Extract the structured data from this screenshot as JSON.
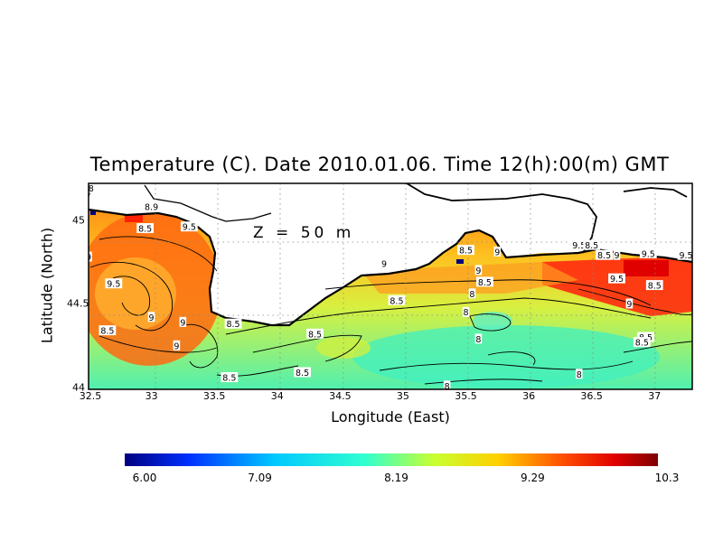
{
  "title": "Temperature (C). Date 2010.01.06. Time 12(h):00(m) GMT",
  "depth_label": "Z = 50 m",
  "x_axis": {
    "label": "Longitude (East)",
    "ticks": [
      "32.5",
      "33",
      "33.5",
      "34",
      "34.5",
      "35",
      "35.5",
      "36",
      "36.5",
      "37"
    ],
    "range": [
      32.5,
      37.3
    ]
  },
  "y_axis": {
    "label": "Latitude (North)",
    "ticks": [
      "44",
      "44.5",
      "45"
    ],
    "range": [
      43.99,
      45.22
    ]
  },
  "colorbar": {
    "ticks": [
      "6.00",
      "7.09",
      "8.19",
      "9.29",
      "10.3"
    ],
    "min": 6.0,
    "max": 10.3,
    "colors": [
      "#00007f",
      "#0030ff",
      "#00c8ff",
      "#30ffd0",
      "#c8ff30",
      "#ffd000",
      "#ff5000",
      "#e00000",
      "#7f0000"
    ]
  },
  "contour_labels": [
    {
      "text": "9.5",
      "lon": 32.7,
      "lat": 44.62
    },
    {
      "text": "9",
      "lon": 32.5,
      "lat": 44.78
    },
    {
      "text": "8.5",
      "lon": 32.95,
      "lat": 44.95
    },
    {
      "text": "9.5",
      "lon": 33.3,
      "lat": 44.96
    },
    {
      "text": "8.5",
      "lon": 32.65,
      "lat": 44.34
    },
    {
      "text": "9",
      "lon": 33.0,
      "lat": 44.42
    },
    {
      "text": "9",
      "lon": 33.25,
      "lat": 44.39
    },
    {
      "text": "9",
      "lon": 33.2,
      "lat": 44.25
    },
    {
      "text": "8.5",
      "lon": 33.65,
      "lat": 44.38
    },
    {
      "text": "8.5",
      "lon": 33.62,
      "lat": 44.06
    },
    {
      "text": "9",
      "lon": 34.85,
      "lat": 44.74
    },
    {
      "text": "8.5",
      "lon": 34.95,
      "lat": 44.52
    },
    {
      "text": "8.5",
      "lon": 34.3,
      "lat": 44.32
    },
    {
      "text": "8.5",
      "lon": 34.2,
      "lat": 44.09
    },
    {
      "text": "9",
      "lon": 35.6,
      "lat": 44.7
    },
    {
      "text": "8.5",
      "lon": 35.5,
      "lat": 44.82
    },
    {
      "text": "9",
      "lon": 35.75,
      "lat": 44.81
    },
    {
      "text": "8.5",
      "lon": 35.65,
      "lat": 44.63
    },
    {
      "text": "8",
      "lon": 35.55,
      "lat": 44.56
    },
    {
      "text": "8",
      "lon": 35.5,
      "lat": 44.45
    },
    {
      "text": "8",
      "lon": 35.6,
      "lat": 44.29
    },
    {
      "text": "8",
      "lon": 35.35,
      "lat": 44.01
    },
    {
      "text": "8",
      "lon": 36.4,
      "lat": 44.08
    },
    {
      "text": "9.5",
      "lon": 36.4,
      "lat": 44.85
    },
    {
      "text": "8.5",
      "lon": 36.5,
      "lat": 44.85
    },
    {
      "text": "8.5",
      "lon": 36.6,
      "lat": 44.79
    },
    {
      "text": "9",
      "lon": 36.7,
      "lat": 44.79
    },
    {
      "text": "9.5",
      "lon": 36.95,
      "lat": 44.8
    },
    {
      "text": "9.5",
      "lon": 37.25,
      "lat": 44.79
    },
    {
      "text": "9.5",
      "lon": 36.7,
      "lat": 44.65
    },
    {
      "text": "8.5",
      "lon": 37.0,
      "lat": 44.61
    },
    {
      "text": "9",
      "lon": 36.8,
      "lat": 44.5
    },
    {
      "text": "8.5",
      "lon": 36.93,
      "lat": 44.3
    },
    {
      "text": "8.5",
      "lon": 36.9,
      "lat": 44.27
    },
    {
      "text": "7",
      "lon": 32.5,
      "lat": 45.15
    },
    {
      "text": "8",
      "lon": 32.52,
      "lat": 45.19
    },
    {
      "text": "8.9",
      "lon": 33.0,
      "lat": 45.08
    }
  ]
}
